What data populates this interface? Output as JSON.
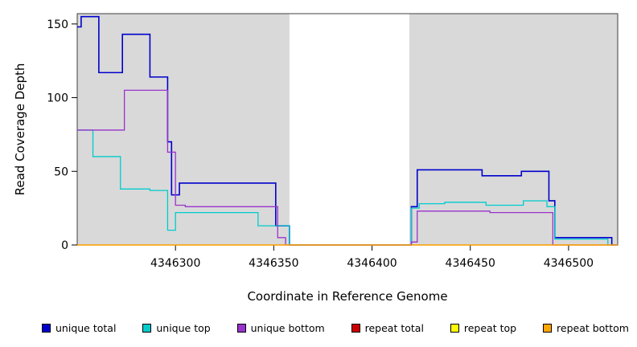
{
  "chart_data": {
    "type": "line",
    "style": "step",
    "title": "",
    "xlabel": "Coordinate in Reference Genome",
    "ylabel": "Read Coverage Depth",
    "xlim": [
      4346250,
      4346525
    ],
    "ylim": [
      0,
      157
    ],
    "xticks": [
      4346300,
      4346350,
      4346400,
      4346450,
      4346500
    ],
    "yticks": [
      0,
      50,
      100,
      150
    ],
    "grid": false,
    "legend_position": "bottom",
    "background_color": "#ffffff",
    "background_regions": [
      {
        "x0": 4346250,
        "x1": 4346358,
        "color": "#d9d9d9"
      },
      {
        "x0": 4346419,
        "x1": 4346525,
        "color": "#d9d9d9"
      }
    ],
    "series": [
      {
        "name": "unique total",
        "color": "#0000CD",
        "points": [
          [
            4346250,
            148
          ],
          [
            4346252,
            155
          ],
          [
            4346261,
            117
          ],
          [
            4346273,
            143
          ],
          [
            4346287,
            114
          ],
          [
            4346296,
            70
          ],
          [
            4346298,
            34
          ],
          [
            4346302,
            42
          ],
          [
            4346351,
            13
          ],
          [
            4346358,
            0
          ],
          [
            4346420,
            26
          ],
          [
            4346423,
            51
          ],
          [
            4346456,
            47
          ],
          [
            4346476,
            50
          ],
          [
            4346490,
            30
          ],
          [
            4346493,
            5
          ],
          [
            4346522,
            0
          ],
          [
            4346525,
            0
          ]
        ]
      },
      {
        "name": "unique top",
        "color": "#00CCCC",
        "points": [
          [
            4346250,
            78
          ],
          [
            4346258,
            60
          ],
          [
            4346272,
            38
          ],
          [
            4346287,
            37
          ],
          [
            4346296,
            10
          ],
          [
            4346300,
            22
          ],
          [
            4346342,
            13
          ],
          [
            4346358,
            0
          ],
          [
            4346420,
            25
          ],
          [
            4346424,
            28
          ],
          [
            4346437,
            29
          ],
          [
            4346458,
            27
          ],
          [
            4346477,
            30
          ],
          [
            4346489,
            26
          ],
          [
            4346493,
            4
          ],
          [
            4346520,
            0
          ],
          [
            4346525,
            0
          ]
        ]
      },
      {
        "name": "unique bottom",
        "color": "#9933CC",
        "points": [
          [
            4346250,
            78
          ],
          [
            4346274,
            105
          ],
          [
            4346296,
            63
          ],
          [
            4346300,
            27
          ],
          [
            4346305,
            26
          ],
          [
            4346352,
            5
          ],
          [
            4346356,
            0
          ],
          [
            4346420,
            2
          ],
          [
            4346423,
            23
          ],
          [
            4346460,
            22
          ],
          [
            4346492,
            0
          ],
          [
            4346525,
            0
          ]
        ]
      },
      {
        "name": "repeat total",
        "color": "#CC0000",
        "points": [
          [
            4346250,
            0
          ],
          [
            4346525,
            0
          ]
        ]
      },
      {
        "name": "repeat top",
        "color": "#FFFF00",
        "points": [
          [
            4346250,
            0
          ],
          [
            4346525,
            0
          ]
        ]
      },
      {
        "name": "repeat bottom",
        "color": "#FFA500",
        "points": [
          [
            4346250,
            0
          ],
          [
            4346525,
            0
          ]
        ]
      }
    ]
  }
}
